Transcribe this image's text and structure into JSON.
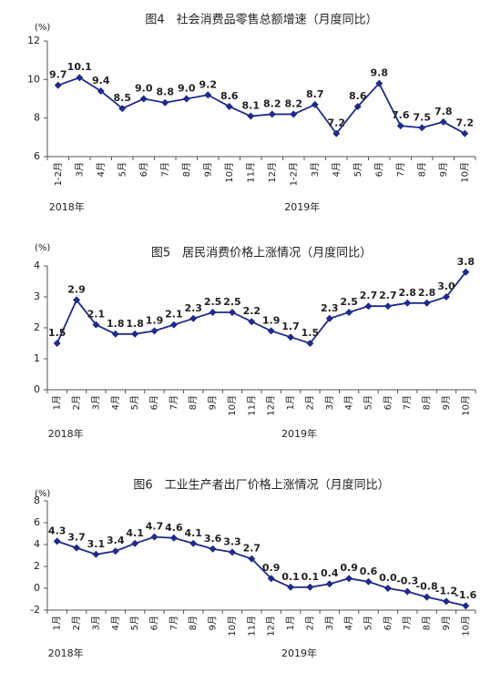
{
  "chart_data": [
    {
      "type": "line",
      "title": "图4　社会消费品零售总额增速（月度同比）",
      "unit": "(%)",
      "categories": [
        "1-2月",
        "3月",
        "4月",
        "5月",
        "6月",
        "7月",
        "8月",
        "9月",
        "10月",
        "11月",
        "12月",
        "1-2月",
        "3月",
        "4月",
        "5月",
        "6月",
        "7月",
        "8月",
        "9月",
        "10月"
      ],
      "year_labels": [
        "2018年",
        "2019年"
      ],
      "color": "#1f2a8c",
      "values": [
        9.7,
        10.1,
        9.4,
        8.5,
        9.0,
        8.8,
        9.0,
        9.2,
        8.6,
        8.1,
        8.2,
        8.2,
        8.7,
        7.2,
        8.6,
        9.8,
        7.6,
        7.5,
        7.8,
        7.2
      ],
      "value_labels": [
        "9.7",
        "10.1",
        "9.4",
        "8.5",
        "9.0",
        "8.8",
        "9.0",
        "9.2",
        "8.6",
        "8.1",
        "8.2",
        "8.2",
        "8.7",
        "7.2",
        "8.6",
        "9.8",
        "7.6",
        "7.5",
        "7.8",
        "7.2"
      ],
      "ylim": [
        6,
        12
      ],
      "yticks": [
        6,
        8,
        10,
        12
      ]
    },
    {
      "type": "line",
      "title": "图5　居民消费价格上涨情况（月度同比）",
      "unit": "(%)",
      "categories": [
        "1月",
        "2月",
        "3月",
        "4月",
        "5月",
        "6月",
        "7月",
        "8月",
        "9月",
        "10月",
        "11月",
        "12月",
        "1月",
        "2月",
        "3月",
        "4月",
        "5月",
        "6月",
        "7月",
        "8月",
        "9月",
        "10月"
      ],
      "year_labels": [
        "2018年",
        "2019年"
      ],
      "color": "#1f2a8c",
      "values": [
        1.5,
        2.9,
        2.1,
        1.8,
        1.8,
        1.9,
        2.1,
        2.3,
        2.5,
        2.5,
        2.2,
        1.9,
        1.7,
        1.5,
        2.3,
        2.5,
        2.7,
        2.7,
        2.8,
        2.8,
        3.0,
        3.8
      ],
      "value_labels": [
        "1.5",
        "2.9",
        "2.1",
        "1.8",
        "1.8",
        "1.9",
        "2.1",
        "2.3",
        "2.5",
        "2.5",
        "2.2",
        "1.9",
        "1.7",
        "1.5",
        "2.3",
        "2.5",
        "2.7",
        "2.7",
        "2.8",
        "2.8",
        "3.0",
        "3.8"
      ],
      "ylim": [
        0,
        4
      ],
      "yticks": [
        0,
        1,
        2,
        3,
        4
      ]
    },
    {
      "type": "line",
      "title": "图6　工业生产者出厂价格上涨情况（月度同比）",
      "unit": "(%)",
      "categories": [
        "1月",
        "2月",
        "3月",
        "4月",
        "5月",
        "6月",
        "7月",
        "8月",
        "9月",
        "10月",
        "11月",
        "12月",
        "1月",
        "2月",
        "3月",
        "4月",
        "5月",
        "6月",
        "7月",
        "8月",
        "9月",
        "10月"
      ],
      "year_labels": [
        "2018年",
        "2019年"
      ],
      "color": "#1f2a8c",
      "values": [
        4.3,
        3.7,
        3.1,
        3.4,
        4.1,
        4.7,
        4.6,
        4.1,
        3.6,
        3.3,
        2.7,
        0.9,
        0.1,
        0.1,
        0.4,
        0.9,
        0.6,
        0.0,
        -0.3,
        -0.8,
        -1.2,
        -1.6
      ],
      "value_labels": [
        "4.3",
        "3.7",
        "3.1",
        "3.4",
        "4.1",
        "4.7",
        "4.6",
        "4.1",
        "3.6",
        "3.3",
        "2.7",
        "0.9",
        "0.1",
        "0.1",
        "0.4",
        "0.9",
        "0.6",
        "0.0",
        "-0.3",
        "-0.8",
        "-1.2",
        "-1.6"
      ],
      "ylim": [
        -2,
        8
      ],
      "yticks": [
        -2,
        0,
        2,
        4,
        6,
        8
      ]
    }
  ]
}
